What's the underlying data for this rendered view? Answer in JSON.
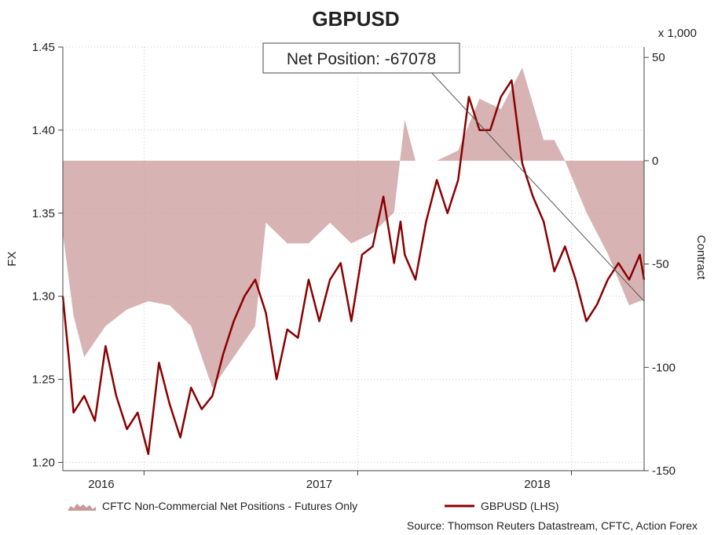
{
  "chart_data": {
    "type": "line",
    "title": "GBPUSD",
    "x_tick_labels": [
      "2016",
      "2017",
      "2018"
    ],
    "left_axis": {
      "label": "FX",
      "range": [
        1.195,
        1.45
      ],
      "ticks": [
        1.2,
        1.25,
        1.3,
        1.35,
        1.4,
        1.45
      ],
      "tick_labels": [
        "1.20",
        "1.25",
        "1.30",
        "1.35",
        "1.40",
        "1.45"
      ]
    },
    "right_axis": {
      "label": "Contract",
      "multiplier_label": "x 1,000",
      "range": [
        -150,
        55
      ],
      "ticks": [
        -150,
        -100,
        -50,
        0,
        50
      ],
      "tick_labels": [
        "-150",
        "-100",
        "-50",
        "0",
        "50"
      ]
    },
    "annotation": "Net Position: -67078",
    "series": [
      {
        "name": "CFTC Non-Commercial Net Positions - Futures Only",
        "kind": "area",
        "axis": "right",
        "color": "#c9999a",
        "x": [
          2015.8,
          2015.85,
          2015.9,
          2016.0,
          2016.1,
          2016.2,
          2016.3,
          2016.4,
          2016.5,
          2016.6,
          2016.7,
          2016.75,
          2016.85,
          2016.95,
          2017.05,
          2017.15,
          2017.25,
          2017.35,
          2017.4,
          2017.45,
          2017.55,
          2017.65,
          2017.75,
          2017.85,
          2017.95,
          2018.05,
          2018.1,
          2018.15,
          2018.25,
          2018.35,
          2018.45,
          2018.52
        ],
        "values": [
          -35,
          -75,
          -95,
          -80,
          -72,
          -68,
          -70,
          -80,
          -110,
          -95,
          -80,
          -30,
          -40,
          -40,
          -30,
          -40,
          -35,
          -25,
          20,
          0,
          0,
          5,
          30,
          25,
          45,
          10,
          10,
          0,
          -25,
          -45,
          -70,
          -67.078
        ]
      },
      {
        "name": "GBPUSD (LHS)",
        "kind": "line",
        "axis": "left",
        "color": "#8b0000",
        "x": [
          2015.8,
          2015.83,
          2015.85,
          2015.9,
          2015.95,
          2016.0,
          2016.05,
          2016.1,
          2016.15,
          2016.2,
          2016.25,
          2016.3,
          2016.35,
          2016.4,
          2016.45,
          2016.5,
          2016.55,
          2016.6,
          2016.65,
          2016.7,
          2016.75,
          2016.8,
          2016.85,
          2016.9,
          2016.95,
          2017.0,
          2017.05,
          2017.1,
          2017.15,
          2017.2,
          2017.25,
          2017.3,
          2017.35,
          2017.38,
          2017.4,
          2017.45,
          2017.5,
          2017.55,
          2017.6,
          2017.65,
          2017.7,
          2017.75,
          2017.8,
          2017.85,
          2017.9,
          2017.95,
          2018.0,
          2018.05,
          2018.1,
          2018.15,
          2018.2,
          2018.25,
          2018.3,
          2018.35,
          2018.4,
          2018.45,
          2018.5,
          2018.52
        ],
        "values": [
          1.3,
          1.26,
          1.23,
          1.24,
          1.225,
          1.27,
          1.24,
          1.22,
          1.23,
          1.205,
          1.26,
          1.235,
          1.215,
          1.245,
          1.232,
          1.24,
          1.265,
          1.285,
          1.3,
          1.31,
          1.29,
          1.25,
          1.28,
          1.275,
          1.31,
          1.285,
          1.31,
          1.32,
          1.285,
          1.325,
          1.33,
          1.36,
          1.32,
          1.345,
          1.325,
          1.31,
          1.345,
          1.37,
          1.35,
          1.37,
          1.42,
          1.4,
          1.4,
          1.42,
          1.43,
          1.38,
          1.36,
          1.345,
          1.315,
          1.33,
          1.31,
          1.285,
          1.295,
          1.31,
          1.32,
          1.31,
          1.325,
          1.31
        ]
      }
    ],
    "trendline": {
      "x": [
        2017.45,
        2018.52
      ],
      "values": [
        1.445,
        1.297
      ],
      "axis": "left"
    },
    "legend": [
      "CFTC Non-Commercial Net Positions - Futures Only",
      "GBPUSD (LHS)"
    ],
    "legend_position": "bottom",
    "grid": true
  },
  "source_text": "Source: Thomson Reuters Datastream, CFTC, Action Forex"
}
